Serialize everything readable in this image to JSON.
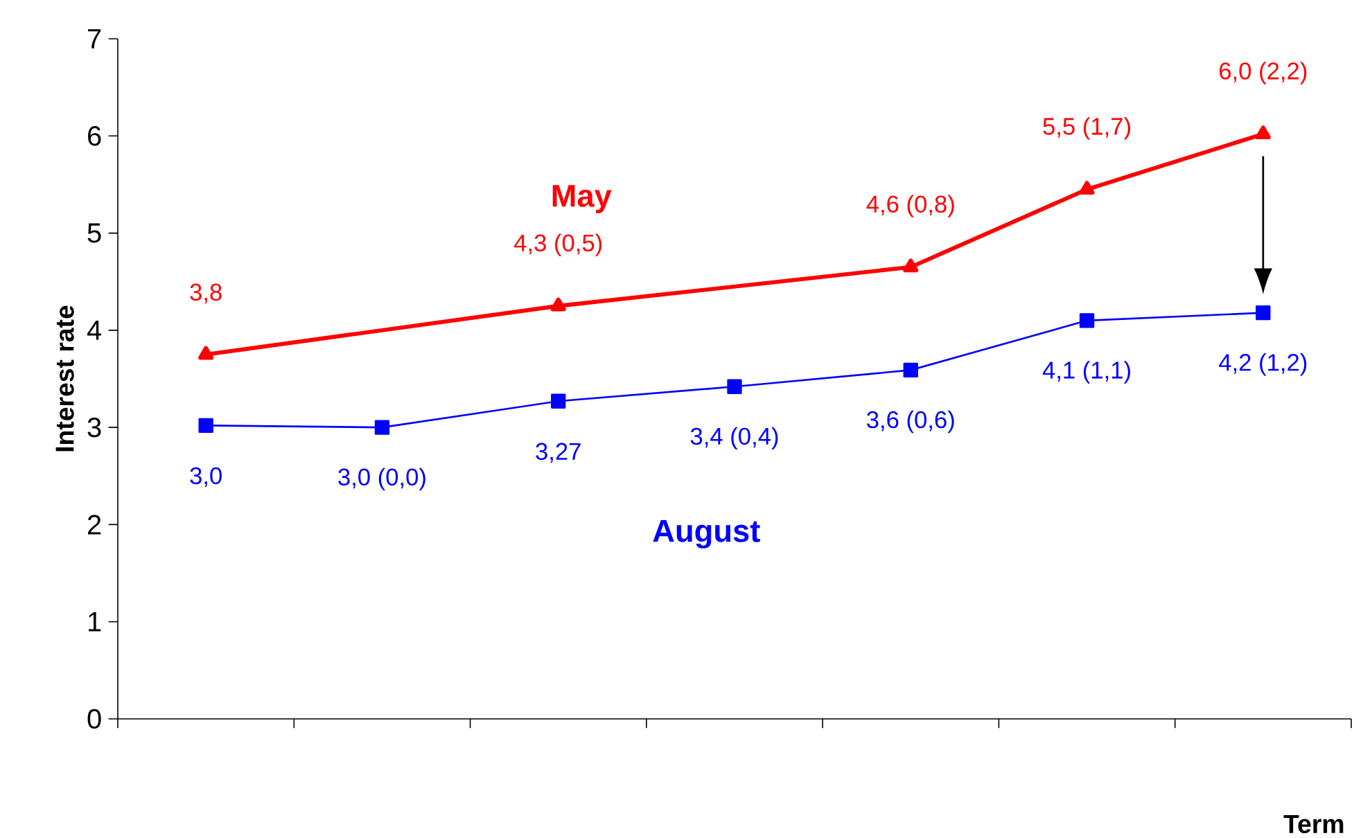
{
  "chart_data": {
    "type": "line",
    "xlabel": "Term",
    "ylabel": "Interest rate",
    "categories": [
      null,
      null,
      null,
      null,
      null,
      null,
      null
    ],
    "ylim": [
      0,
      7
    ],
    "yticks": [
      0,
      1,
      2,
      3,
      4,
      5,
      6,
      7
    ],
    "grid": false,
    "series": [
      {
        "name": "May",
        "color": "#ff0000",
        "marker": "triangle",
        "values": [
          3.75,
          null,
          4.25,
          null,
          4.65,
          5.45,
          6.02
        ],
        "value_labels": [
          "3,8",
          null,
          "4,3 (0,5)",
          null,
          "4,6 (0,8)",
          "5,5 (1,7)",
          "6,0 (2,2)"
        ]
      },
      {
        "name": "August",
        "color": "#0000ff",
        "marker": "square",
        "values": [
          3.02,
          3.0,
          3.27,
          3.42,
          3.59,
          4.1,
          4.18
        ],
        "value_labels": [
          "3,0",
          "3,0 (0,0)",
          "3,27",
          "3,4 (0,4)",
          "3,6 (0,6)",
          "4,1 (1,1)",
          "4,2 (1,2)"
        ]
      }
    ]
  }
}
